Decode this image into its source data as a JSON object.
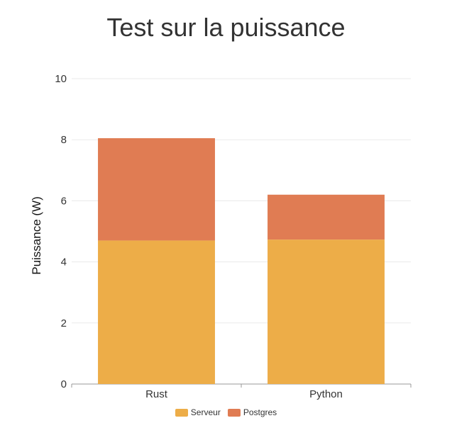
{
  "chart_data": {
    "type": "bar",
    "stacked": true,
    "title": "Test sur la puissance",
    "xlabel": "",
    "ylabel": "Puissance (W)",
    "categories": [
      "Rust",
      "Python"
    ],
    "series": [
      {
        "name": "Serveur",
        "values": [
          4.7,
          4.73
        ],
        "color": "#EDAD48"
      },
      {
        "name": "Postgres",
        "values": [
          3.35,
          1.47
        ],
        "color": "#E07C53"
      }
    ],
    "ylim": [
      0,
      10
    ],
    "yticks": [
      0,
      2,
      4,
      6,
      8,
      10
    ],
    "grid": true,
    "legend_position": "bottom"
  }
}
